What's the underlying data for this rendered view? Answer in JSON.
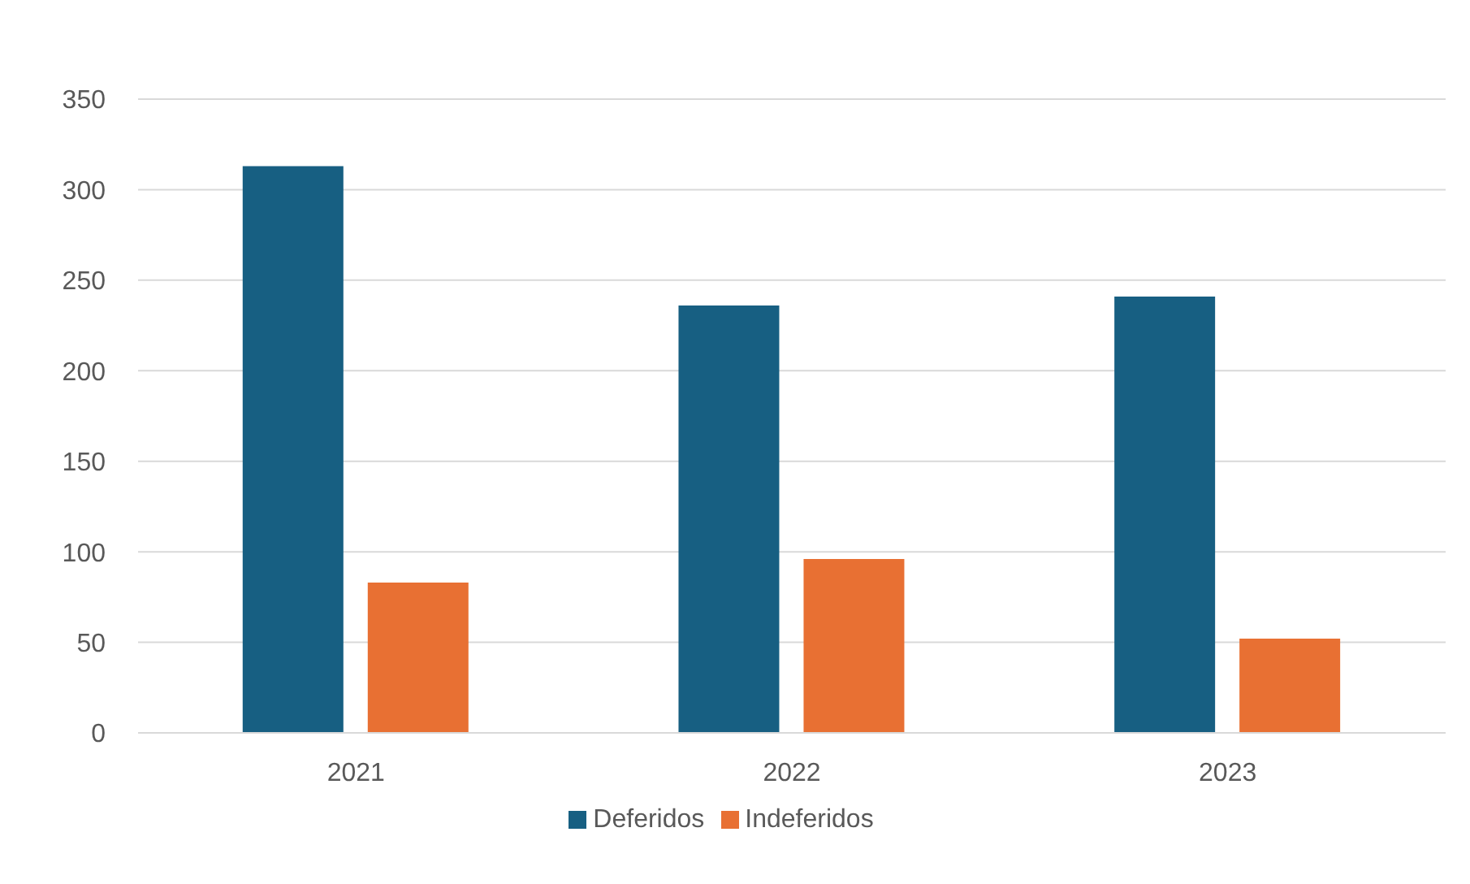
{
  "chart_data": {
    "type": "bar",
    "categories": [
      "2021",
      "2022",
      "2023"
    ],
    "series": [
      {
        "name": "Deferidos",
        "color": "#175f82",
        "values": [
          313,
          236,
          241
        ]
      },
      {
        "name": "Indeferidos",
        "color": "#e87033",
        "values": [
          83,
          96,
          52
        ]
      }
    ],
    "ylim": [
      0,
      350
    ],
    "yticks": [
      0,
      50,
      100,
      150,
      200,
      250,
      300,
      350
    ],
    "grid": "y",
    "legend": "bottom"
  }
}
